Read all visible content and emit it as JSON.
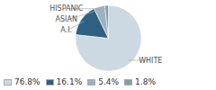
{
  "chart_data": {
    "type": "pie",
    "categories": [
      "WHITE",
      "A.I.",
      "ASIAN",
      "HISPANIC"
    ],
    "values": [
      76.8,
      16.1,
      5.4,
      1.8
    ],
    "value_labels": [
      "76.8%",
      "16.1%",
      "5.4%",
      "1.8%"
    ],
    "colors": [
      "#ccd9e3",
      "#2e6082",
      "#9ab3c0",
      "#7aa0b0"
    ],
    "legend": "lower left"
  }
}
